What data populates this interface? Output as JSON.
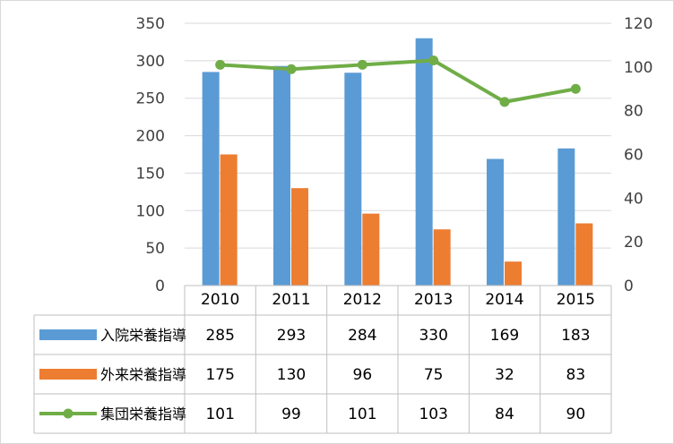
{
  "colors": {
    "bar1": "#5b9bd5",
    "bar2": "#ed7d31",
    "line": "#70ad47",
    "grid": "#d9d9d9",
    "axis_text": "#404040"
  },
  "chart_data": {
    "type": "bar",
    "categories": [
      "2010",
      "2011",
      "2012",
      "2013",
      "2014",
      "2015"
    ],
    "series": [
      {
        "name": "入院栄養指導",
        "type": "bar",
        "axis": "left",
        "values": [
          285,
          293,
          284,
          330,
          169,
          183
        ]
      },
      {
        "name": "外来栄養指導",
        "type": "bar",
        "axis": "left",
        "values": [
          175,
          130,
          96,
          75,
          32,
          83
        ]
      },
      {
        "name": "集団栄養指導",
        "type": "line",
        "axis": "right",
        "values": [
          101,
          99,
          101,
          103,
          84,
          90
        ]
      }
    ],
    "y_left": {
      "min": 0,
      "max": 350,
      "ticks": [
        0,
        50,
        100,
        150,
        200,
        250,
        300,
        350
      ]
    },
    "y_right": {
      "min": 0,
      "max": 120,
      "ticks": [
        0,
        20,
        40,
        60,
        80,
        100,
        120
      ]
    },
    "data_table": true,
    "grid": true
  }
}
